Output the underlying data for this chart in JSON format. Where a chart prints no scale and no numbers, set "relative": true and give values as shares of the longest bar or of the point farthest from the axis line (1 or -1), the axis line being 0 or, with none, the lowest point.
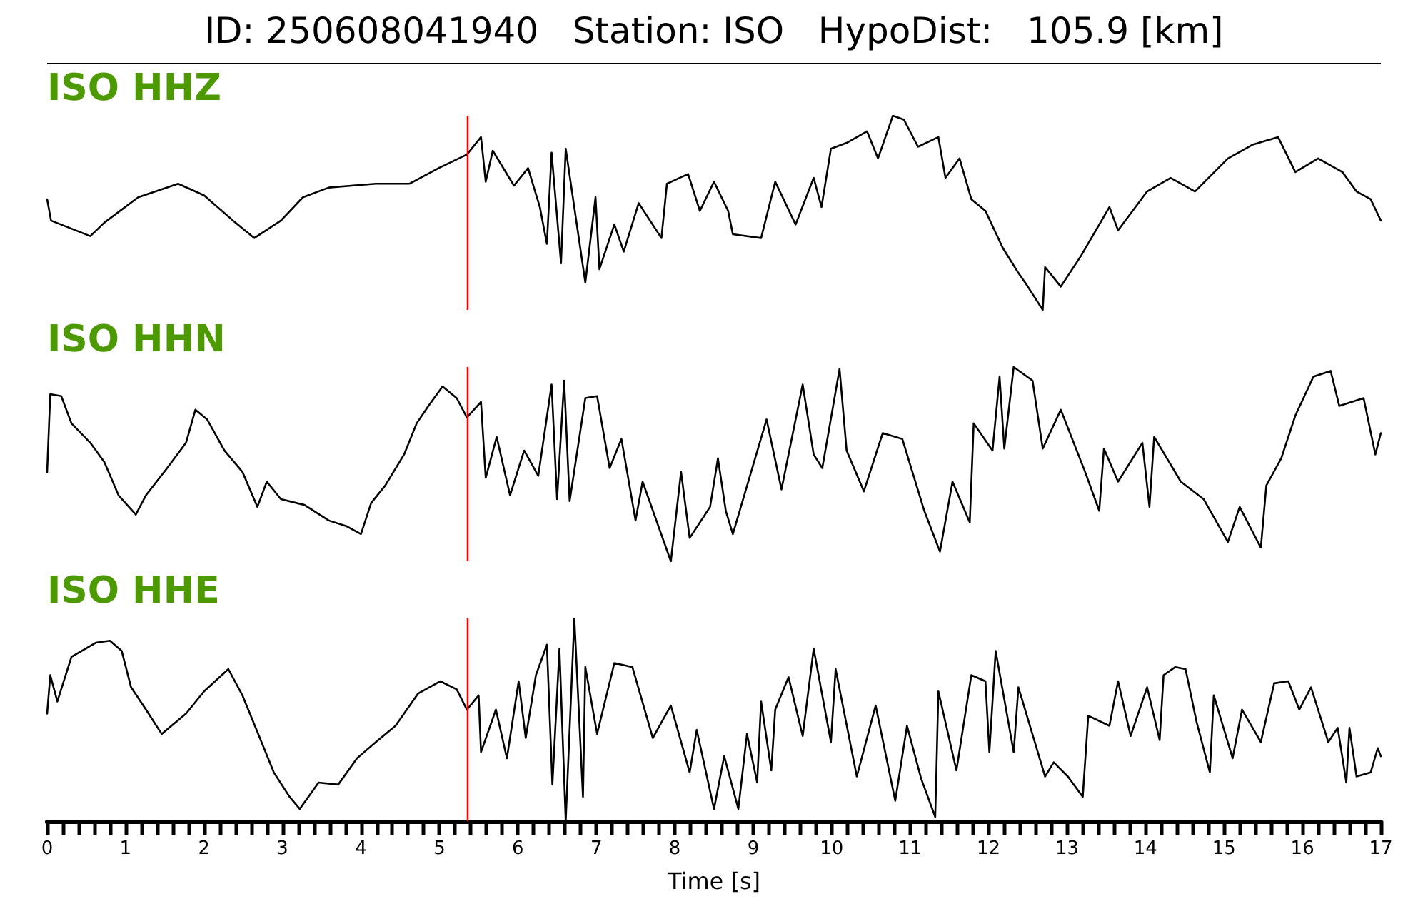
{
  "chart_data": [
    {
      "type": "line",
      "title": "ID: 250608041940   Station: ISO   HypoDist:   105.9 [km]",
      "relative": true,
      "xlim": [
        0,
        17
      ],
      "tick_labels": false,
      "annotations": [
        "ISO HHZ"
      ],
      "ref_lines": [
        {
          "axis": "x",
          "value": 5.35,
          "color": "#ff0000"
        }
      ],
      "x": [
        0,
        0.05,
        0.55,
        0.73,
        1.16,
        1.67,
        2.0,
        2.37,
        2.64,
        2.98,
        3.26,
        3.59,
        4.19,
        4.62,
        4.99,
        5.35,
        5.53,
        5.59,
        5.68,
        5.95,
        6.13,
        6.28,
        6.37,
        6.43,
        6.55,
        6.61,
        6.86,
        6.99,
        7.04,
        7.23,
        7.35,
        7.54,
        7.83,
        7.9,
        8.17,
        8.32,
        8.5,
        8.68,
        8.74,
        9.1,
        9.28,
        9.54,
        9.77,
        9.87,
        9.99,
        10.19,
        10.45,
        10.59,
        10.78,
        10.92,
        11.1,
        11.36,
        11.45,
        11.63,
        11.78,
        11.96,
        12.18,
        12.38,
        12.5,
        12.69,
        12.72,
        12.92,
        13.18,
        13.54,
        13.65,
        14.02,
        14.32,
        14.63,
        15.05,
        15.36,
        15.69,
        15.91,
        16.2,
        16.51,
        16.69,
        16.87,
        17.0
      ],
      "series": [
        {
          "color": "#000000",
          "values": [
            0.57,
            0.46,
            0.38,
            0.45,
            0.58,
            0.65,
            0.59,
            0.46,
            0.37,
            0.46,
            0.58,
            0.63,
            0.65,
            0.65,
            0.73,
            0.8,
            0.89,
            0.66,
            0.82,
            0.64,
            0.73,
            0.53,
            0.34,
            0.81,
            0.24,
            0.83,
            0.14,
            0.58,
            0.21,
            0.44,
            0.3,
            0.55,
            0.37,
            0.65,
            0.7,
            0.51,
            0.66,
            0.51,
            0.39,
            0.37,
            0.66,
            0.44,
            0.68,
            0.53,
            0.83,
            0.86,
            0.92,
            0.78,
            1.0,
            0.98,
            0.84,
            0.89,
            0.68,
            0.78,
            0.57,
            0.51,
            0.32,
            0.19,
            0.12,
            0,
            0.22,
            0.12,
            0.28,
            0.53,
            0.41,
            0.61,
            0.68,
            0.61,
            0.78,
            0.85,
            0.89,
            0.71,
            0.78,
            0.71,
            0.61,
            0.57,
            0.46
          ]
        }
      ]
    },
    {
      "type": "line",
      "relative": true,
      "xlim": [
        0,
        17
      ],
      "tick_labels": false,
      "annotations": [
        "ISO HHN"
      ],
      "ref_lines": [
        {
          "axis": "x",
          "value": 5.35,
          "color": "#ff0000"
        }
      ],
      "x": [
        0,
        0.04,
        0.18,
        0.31,
        0.55,
        0.73,
        0.91,
        1.13,
        1.26,
        1.53,
        1.77,
        1.89,
        2.04,
        2.26,
        2.49,
        2.68,
        2.8,
        2.98,
        3.28,
        3.59,
        3.82,
        4.0,
        4.13,
        4.31,
        4.55,
        4.71,
        4.86,
        5.04,
        5.22,
        5.35,
        5.53,
        5.59,
        5.73,
        5.9,
        6.08,
        6.26,
        6.43,
        6.5,
        6.59,
        6.66,
        6.86,
        7.01,
        7.17,
        7.32,
        7.5,
        7.59,
        7.95,
        8.08,
        8.19,
        8.45,
        8.55,
        8.65,
        8.74,
        9.17,
        9.36,
        9.63,
        9.77,
        9.88,
        10.1,
        10.19,
        10.41,
        10.65,
        10.9,
        11.18,
        11.38,
        11.54,
        11.76,
        11.81,
        12.05,
        12.14,
        12.2,
        12.32,
        12.56,
        12.69,
        12.92,
        13.23,
        13.41,
        13.47,
        13.65,
        13.96,
        14.05,
        14.11,
        14.45,
        14.74,
        15.05,
        15.2,
        15.47,
        15.54,
        15.73,
        15.91,
        16.14,
        16.36,
        16.47,
        16.78,
        16.93,
        17.0
      ],
      "series": [
        {
          "color": "#000000",
          "values": [
            0.46,
            0.86,
            0.85,
            0.71,
            0.61,
            0.51,
            0.34,
            0.24,
            0.34,
            0.48,
            0.61,
            0.78,
            0.73,
            0.57,
            0.46,
            0.28,
            0.41,
            0.32,
            0.29,
            0.21,
            0.18,
            0.14,
            0.3,
            0.39,
            0.55,
            0.71,
            0.8,
            0.9,
            0.84,
            0.74,
            0.82,
            0.43,
            0.64,
            0.34,
            0.57,
            0.44,
            0.91,
            0.32,
            0.93,
            0.31,
            0.84,
            0.85,
            0.48,
            0.63,
            0.21,
            0.41,
            0,
            0.46,
            0.12,
            0.28,
            0.53,
            0.26,
            0.14,
            0.73,
            0.37,
            0.91,
            0.55,
            0.48,
            0.99,
            0.57,
            0.36,
            0.66,
            0.63,
            0.26,
            0.05,
            0.41,
            0.2,
            0.71,
            0.57,
            0.95,
            0.58,
            1.0,
            0.93,
            0.58,
            0.78,
            0.46,
            0.26,
            0.58,
            0.41,
            0.61,
            0.28,
            0.64,
            0.41,
            0.32,
            0.1,
            0.28,
            0.07,
            0.39,
            0.53,
            0.75,
            0.95,
            0.98,
            0.8,
            0.84,
            0.55,
            0.66
          ]
        }
      ]
    },
    {
      "type": "line",
      "relative": true,
      "xlim": [
        0,
        17
      ],
      "tick_labels": "x",
      "xlabel": "Time [s]",
      "annotations": [
        "ISO HHE"
      ],
      "ref_lines": [
        {
          "axis": "x",
          "value": 5.35,
          "color": "#ff0000"
        }
      ],
      "xticks": [
        0,
        {
          "value": 0.2,
          "label": null
        },
        {
          "value": 0.4,
          "label": null
        },
        {
          "value": 0.6,
          "label": null
        },
        {
          "value": 0.8,
          "label": null
        },
        1,
        {
          "value": 1.2,
          "label": null
        },
        {
          "value": 1.4,
          "label": null
        },
        {
          "value": 1.6,
          "label": null
        },
        {
          "value": 1.8,
          "label": null
        },
        2,
        {
          "value": 2.2,
          "label": null
        },
        {
          "value": 2.4,
          "label": null
        },
        {
          "value": 2.6,
          "label": null
        },
        {
          "value": 2.8,
          "label": null
        },
        3,
        {
          "value": 3.2,
          "label": null
        },
        {
          "value": 3.4,
          "label": null
        },
        {
          "value": 3.6,
          "label": null
        },
        {
          "value": 3.8,
          "label": null
        },
        4,
        {
          "value": 4.2,
          "label": null
        },
        {
          "value": 4.4,
          "label": null
        },
        {
          "value": 4.6,
          "label": null
        },
        {
          "value": 4.8,
          "label": null
        },
        5,
        {
          "value": 5.2,
          "label": null
        },
        {
          "value": 5.4,
          "label": null
        },
        {
          "value": 5.6,
          "label": null
        },
        {
          "value": 5.8,
          "label": null
        },
        6,
        {
          "value": 6.2,
          "label": null
        },
        {
          "value": 6.4,
          "label": null
        },
        {
          "value": 6.6,
          "label": null
        },
        {
          "value": 6.8,
          "label": null
        },
        7,
        {
          "value": 7.2,
          "label": null
        },
        {
          "value": 7.4,
          "label": null
        },
        {
          "value": 7.6,
          "label": null
        },
        {
          "value": 7.8,
          "label": null
        },
        8,
        {
          "value": 8.2,
          "label": null
        },
        {
          "value": 8.4,
          "label": null
        },
        {
          "value": 8.6,
          "label": null
        },
        {
          "value": 8.8,
          "label": null
        },
        9,
        {
          "value": 9.2,
          "label": null
        },
        {
          "value": 9.4,
          "label": null
        },
        {
          "value": 9.6,
          "label": null
        },
        {
          "value": 9.8,
          "label": null
        },
        10,
        {
          "value": 10.2,
          "label": null
        },
        {
          "value": 10.4,
          "label": null
        },
        {
          "value": 10.6,
          "label": null
        },
        {
          "value": 10.8,
          "label": null
        },
        11,
        {
          "value": 11.2,
          "label": null
        },
        {
          "value": 11.4,
          "label": null
        },
        {
          "value": 11.6,
          "label": null
        },
        {
          "value": 11.8,
          "label": null
        },
        12,
        {
          "value": 12.2,
          "label": null
        },
        {
          "value": 12.4,
          "label": null
        },
        {
          "value": 12.6,
          "label": null
        },
        {
          "value": 12.8,
          "label": null
        },
        13,
        {
          "value": 13.2,
          "label": null
        },
        {
          "value": 13.4,
          "label": null
        },
        {
          "value": 13.6,
          "label": null
        },
        {
          "value": 13.8,
          "label": null
        },
        14,
        {
          "value": 14.2,
          "label": null
        },
        {
          "value": 14.4,
          "label": null
        },
        {
          "value": 14.6,
          "label": null
        },
        {
          "value": 14.8,
          "label": null
        },
        15,
        {
          "value": 15.2,
          "label": null
        },
        {
          "value": 15.4,
          "label": null
        },
        {
          "value": 15.6,
          "label": null
        },
        {
          "value": 15.8,
          "label": null
        },
        16,
        {
          "value": 16.2,
          "label": null
        },
        {
          "value": 16.4,
          "label": null
        },
        {
          "value": 16.6,
          "label": null
        },
        {
          "value": 16.8,
          "label": null
        },
        17
      ],
      "x": [
        0,
        0.04,
        0.13,
        0.31,
        0.62,
        0.8,
        0.95,
        1.07,
        1.26,
        1.46,
        1.77,
        2.0,
        2.31,
        2.49,
        2.68,
        2.89,
        3.09,
        3.22,
        3.46,
        3.71,
        3.95,
        4.19,
        4.44,
        4.73,
        5.01,
        5.22,
        5.35,
        5.5,
        5.53,
        5.72,
        5.86,
        6.01,
        6.1,
        6.23,
        6.37,
        6.44,
        6.53,
        6.61,
        6.72,
        6.83,
        6.86,
        7.01,
        7.23,
        7.46,
        7.72,
        7.95,
        8.19,
        8.28,
        8.5,
        8.63,
        8.81,
        8.92,
        9.05,
        9.1,
        9.23,
        9.28,
        9.45,
        9.63,
        9.77,
        9.99,
        10.05,
        10.32,
        10.56,
        10.81,
        10.96,
        11.14,
        11.32,
        11.36,
        11.59,
        11.78,
        11.96,
        12.01,
        12.09,
        12.32,
        12.38,
        12.72,
        12.83,
        13.01,
        13.2,
        13.27,
        13.54,
        13.65,
        13.81,
        14.02,
        14.18,
        14.23,
        14.38,
        14.51,
        14.65,
        14.82,
        14.87,
        15.11,
        15.23,
        15.47,
        15.64,
        15.82,
        15.96,
        16.11,
        16.33,
        16.45,
        16.56,
        16.6,
        16.69,
        16.87,
        16.96,
        17.0
      ],
      "series": [
        {
          "color": "#000000",
          "values": [
            0.53,
            0.72,
            0.59,
            0.81,
            0.88,
            0.89,
            0.84,
            0.66,
            0.55,
            0.43,
            0.53,
            0.64,
            0.75,
            0.62,
            0.44,
            0.24,
            0.12,
            0.06,
            0.19,
            0.18,
            0.31,
            0.39,
            0.47,
            0.63,
            0.69,
            0.65,
            0.55,
            0.62,
            0.34,
            0.55,
            0.31,
            0.69,
            0.41,
            0.72,
            0.87,
            0.18,
            0.85,
            0,
            1.0,
            0.12,
            0.76,
            0.43,
            0.78,
            0.76,
            0.41,
            0.57,
            0.24,
            0.45,
            0.06,
            0.32,
            0.06,
            0.43,
            0.19,
            0.59,
            0.25,
            0.55,
            0.71,
            0.42,
            0.85,
            0.39,
            0.75,
            0.22,
            0.57,
            0.1,
            0.47,
            0.21,
            0.02,
            0.64,
            0.25,
            0.72,
            0.69,
            0.34,
            0.84,
            0.34,
            0.66,
            0.22,
            0.29,
            0.22,
            0.12,
            0.52,
            0.47,
            0.69,
            0.42,
            0.66,
            0.4,
            0.72,
            0.76,
            0.75,
            0.49,
            0.24,
            0.62,
            0.31,
            0.55,
            0.39,
            0.68,
            0.69,
            0.55,
            0.66,
            0.39,
            0.46,
            0.19,
            0.46,
            0.22,
            0.24,
            0.36,
            0.32
          ]
        }
      ]
    }
  ]
}
